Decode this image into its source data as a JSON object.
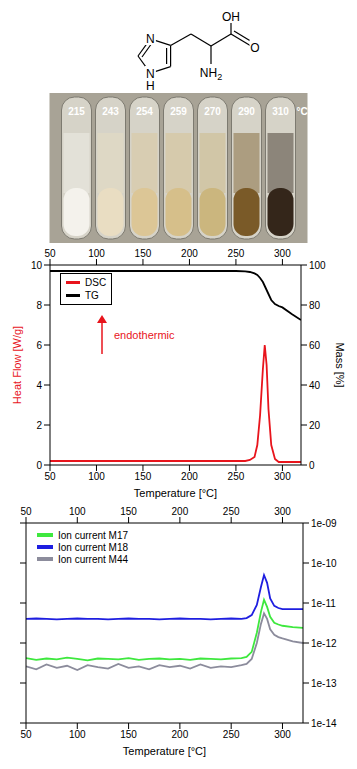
{
  "structure": {
    "atoms": {
      "n3": "N",
      "n1": "N",
      "h1": "H",
      "hydroxyl": "OH",
      "carbonyl": "O",
      "amine": "NH",
      "amine_subscript": "2"
    }
  },
  "photo": {
    "temperatures": [
      215,
      243,
      254,
      259,
      270,
      290,
      310
    ],
    "unit": "°C"
  },
  "chart_data": [
    {
      "type": "line",
      "x_label": "Temperature [°C]",
      "xlim": [
        50,
        320
      ],
      "xticks": [
        50,
        100,
        150,
        200,
        250,
        300
      ],
      "y_label": "Heat Flow [W/g]",
      "ylim": [
        0,
        10
      ],
      "yticks": [
        0,
        2,
        4,
        6,
        8,
        10
      ],
      "y2_label": "Mass [%]",
      "y2lim": [
        0,
        100
      ],
      "y2ticks": [
        0,
        20,
        40,
        60,
        80,
        100
      ],
      "legend": "upper left",
      "annotations": [
        {
          "text": "endothermic"
        }
      ],
      "x": [
        50,
        100,
        150,
        200,
        250,
        260,
        265,
        270,
        273,
        276,
        279,
        281,
        283,
        285,
        288,
        292,
        296,
        300,
        310,
        320
      ],
      "series": [
        {
          "name": "DSC",
          "color": "#e8141c",
          "values": [
            0.2,
            0.2,
            0.2,
            0.2,
            0.2,
            0.2,
            0.25,
            0.4,
            1.0,
            2.5,
            4.8,
            6.0,
            5.0,
            2.8,
            1.0,
            0.3,
            0.15,
            0.15,
            0.15,
            0.15
          ]
        },
        {
          "name": "TG",
          "color": "#000000",
          "axis": "y2",
          "values": [
            97,
            97,
            97,
            97,
            97,
            96.8,
            96.5,
            95.8,
            95,
            93.5,
            91.5,
            89.5,
            87.5,
            85.5,
            82.5,
            80.5,
            79.5,
            78.8,
            75.5,
            72.5
          ]
        }
      ]
    },
    {
      "type": "line",
      "log": "y",
      "x_label": "Temperature [°C]",
      "xlim": [
        50,
        320
      ],
      "xticks": [
        50,
        100,
        150,
        200,
        250,
        300
      ],
      "ylim": [
        1e-14,
        1e-09
      ],
      "yticks": [
        {
          "value": 1e-14,
          "label": "1e-14"
        },
        {
          "value": 1e-13,
          "label": "1e-13"
        },
        {
          "value": 1e-12,
          "label": "1e-12"
        },
        {
          "value": 1e-11,
          "label": "1e-11"
        },
        {
          "value": 1e-10,
          "label": "1e-10"
        },
        {
          "value": 1e-09,
          "label": "1e-09"
        }
      ],
      "legend": "upper left",
      "x": [
        50,
        60,
        70,
        80,
        90,
        100,
        110,
        120,
        130,
        140,
        150,
        160,
        170,
        180,
        190,
        200,
        210,
        220,
        230,
        240,
        250,
        260,
        265,
        270,
        275,
        279,
        282,
        285,
        288,
        292,
        296,
        300,
        310,
        320
      ],
      "series": [
        {
          "name": "Ion current M17",
          "color": "#3ee83e",
          "values": [
            4.2e-13,
            3.8e-13,
            4.1e-13,
            3.9e-13,
            4.3e-13,
            4e-13,
            3.7e-13,
            4.1e-13,
            4e-13,
            3.9e-13,
            4.2e-13,
            3.8e-13,
            4e-13,
            4.1e-13,
            3.9e-13,
            4e-13,
            3.8e-13,
            4.1e-13,
            4e-13,
            3.9e-13,
            4.1e-13,
            4.2e-13,
            4.5e-13,
            6e-13,
            1.8e-12,
            6e-12,
            1.2e-11,
            8e-12,
            4.5e-12,
            3.2e-12,
            2.9e-12,
            2.7e-12,
            2.5e-12,
            2.4e-12
          ]
        },
        {
          "name": "Ion current M18",
          "color": "#1e1ee0",
          "values": [
            4e-12,
            4.1e-12,
            4e-12,
            3.9e-12,
            4e-12,
            4.1e-12,
            4e-12,
            4e-12,
            3.9e-12,
            4e-12,
            4.1e-12,
            4e-12,
            4e-12,
            3.9e-12,
            4e-12,
            4.1e-12,
            4e-12,
            4e-12,
            3.9e-12,
            4e-12,
            4.1e-12,
            4e-12,
            4.2e-12,
            5e-12,
            9e-12,
            2.5e-11,
            5e-11,
            3.2e-11,
            1.3e-11,
            8.5e-12,
            7.5e-12,
            7e-12,
            7e-12,
            7e-12
          ]
        },
        {
          "name": "Ion current M44",
          "color": "#8c8c9c",
          "values": [
            2.6e-13,
            2.2e-13,
            2.9e-13,
            2.4e-13,
            2.7e-13,
            2.1e-13,
            2.8e-13,
            2.5e-13,
            2.3e-13,
            3e-13,
            2.4e-13,
            2.6e-13,
            2.2e-13,
            2.8e-13,
            2.5e-13,
            2.7e-13,
            2.3e-13,
            2.9e-13,
            2.4e-13,
            2.6e-13,
            2.5e-13,
            2.8e-13,
            3e-13,
            4e-13,
            1e-12,
            3e-12,
            5.5e-12,
            4e-12,
            2.2e-12,
            1.6e-12,
            1.4e-12,
            1.3e-12,
            1.1e-12,
            1e-12
          ]
        }
      ]
    }
  ]
}
